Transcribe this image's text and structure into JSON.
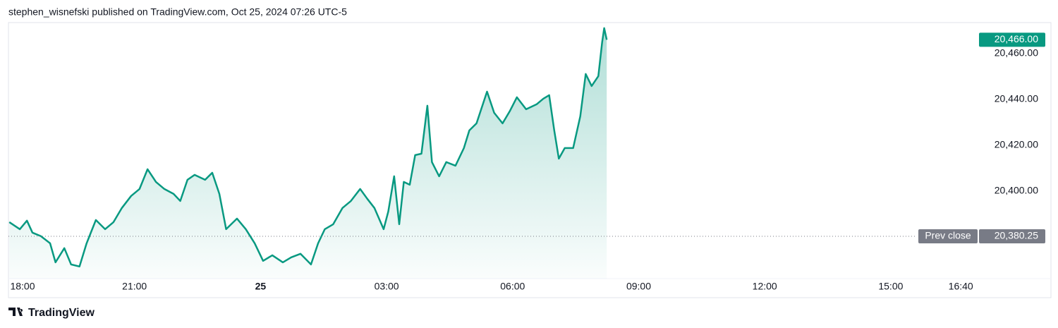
{
  "header": {
    "text": "stephen_wisnefski published on TradingView.com, Oct 25, 2024 07:26 UTC-5"
  },
  "chart_data": {
    "type": "area",
    "color": "#089981",
    "x": [
      18.02,
      18.27,
      18.44,
      18.57,
      18.77,
      18.99,
      19.12,
      19.33,
      19.49,
      19.69,
      19.86,
      20.08,
      20.3,
      20.5,
      20.7,
      20.92,
      21.12,
      21.31,
      21.51,
      21.71,
      21.93,
      22.09,
      22.26,
      22.43,
      22.68,
      22.85,
      23.02,
      23.18,
      23.44,
      23.65,
      23.86,
      24.06,
      24.28,
      24.53,
      24.73,
      24.95,
      25.2,
      25.37,
      25.53,
      25.73,
      25.95,
      26.15,
      26.37,
      26.54,
      26.71,
      26.93,
      27.04,
      27.18,
      27.3,
      27.41,
      27.55,
      27.68,
      27.83,
      27.97,
      28.08,
      28.25,
      28.42,
      28.64,
      28.84,
      28.97,
      29.14,
      29.39,
      29.56,
      29.76,
      29.93,
      30.1,
      30.32,
      30.57,
      30.73,
      30.87,
      30.99,
      31.1,
      31.24,
      31.44,
      31.61,
      31.74,
      31.88,
      32.04,
      32.13,
      32.18,
      32.24
    ],
    "values": [
      20386.46,
      20383.38,
      20387.08,
      20381.85,
      20380.31,
      20377.23,
      20368.92,
      20375.08,
      20368.0,
      20367.08,
      20377.23,
      20387.38,
      20383.38,
      20386.46,
      20392.62,
      20397.85,
      20400.92,
      20409.54,
      20404.0,
      20400.92,
      20398.77,
      20395.69,
      20404.92,
      20407.08,
      20404.92,
      20408.0,
      20398.77,
      20383.38,
      20388.0,
      20383.38,
      20377.23,
      20369.54,
      20372.0,
      20368.92,
      20371.08,
      20372.62,
      20368.0,
      20377.23,
      20383.38,
      20385.54,
      20392.62,
      20395.69,
      20400.92,
      20396.62,
      20392.62,
      20383.38,
      20391.08,
      20406.46,
      20385.54,
      20404.0,
      20402.77,
      20415.69,
      20416.31,
      20437.23,
      20412.62,
      20406.46,
      20412.62,
      20411.08,
      20418.77,
      20426.46,
      20429.54,
      20443.38,
      20434.15,
      20429.54,
      20434.77,
      20440.92,
      20435.69,
      20437.85,
      20440.31,
      20441.85,
      20426.46,
      20414.15,
      20418.77,
      20418.77,
      20432.62,
      20451.08,
      20445.85,
      20450.15,
      20464.92,
      20471.08,
      20466.0
    ],
    "xlim": [
      18,
      41.05
    ],
    "ylim": [
      20361.8,
      20473.5
    ],
    "xticks": [
      {
        "value": 18,
        "label": "18:00"
      },
      {
        "value": 21,
        "label": "21:00"
      },
      {
        "value": 24,
        "label": "25"
      },
      {
        "value": 27,
        "label": "03:00"
      },
      {
        "value": 30,
        "label": "06:00"
      },
      {
        "value": 33,
        "label": "09:00"
      },
      {
        "value": 36,
        "label": "12:00"
      },
      {
        "value": 39,
        "label": "15:00"
      },
      {
        "value": 40.667,
        "label": "16:40"
      }
    ],
    "yticks": [
      {
        "value": 20400,
        "label": "20,400.00"
      },
      {
        "value": 20420,
        "label": "20,420.00"
      },
      {
        "value": 20440,
        "label": "20,440.00"
      },
      {
        "value": 20460,
        "label": "20,460.00"
      }
    ],
    "last_price": {
      "value": 20466,
      "label": "20,466.00"
    },
    "prev_close": {
      "name": "Prev close",
      "value": 20380.25,
      "label": "20,380.25"
    }
  },
  "footer": {
    "logo": "TradingView"
  }
}
